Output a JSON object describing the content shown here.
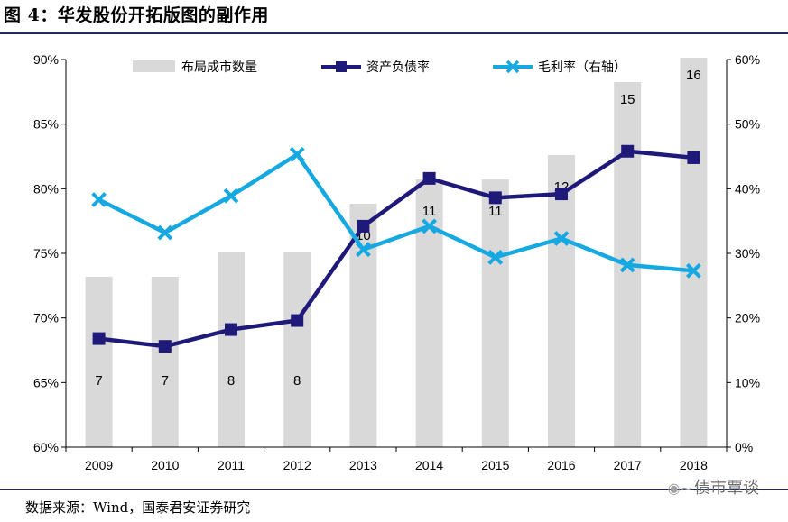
{
  "header": {
    "title": "图 4：华发股份开拓版图的副作用"
  },
  "footer": {
    "source": "数据来源：Wind，国泰君安证券研究",
    "watermark": "债市覃谈"
  },
  "icons": {
    "watermark_icon": "wechat-icon"
  },
  "colors": {
    "bars": "#d9d9d9",
    "debt_line": "#1f1a7a",
    "margin_line": "#16a9e1"
  },
  "chart_data": {
    "type": "bar",
    "categories": [
      "2009",
      "2010",
      "2011",
      "2012",
      "2013",
      "2014",
      "2015",
      "2016",
      "2017",
      "2018"
    ],
    "legend_position": "top",
    "grid": false,
    "series": [
      {
        "name": "布局成市数量",
        "kind": "bar",
        "axis": "none",
        "values": [
          7,
          7,
          8,
          8,
          10,
          11,
          11,
          12,
          15,
          16
        ]
      },
      {
        "name": "资产负债率",
        "kind": "line",
        "marker": "square",
        "axis": "left",
        "values": [
          68.4,
          67.8,
          69.1,
          69.8,
          77.1,
          80.8,
          79.3,
          79.6,
          82.9,
          82.4
        ]
      },
      {
        "name": "毛利率（右轴）",
        "kind": "line",
        "marker": "x",
        "axis": "right",
        "values": [
          38.3,
          33.2,
          38.9,
          45.3,
          30.6,
          34.2,
          29.4,
          32.3,
          28.2,
          27.3
        ]
      }
    ],
    "y_left": {
      "min": 60,
      "max": 90,
      "step": 5,
      "ticks": [
        "60%",
        "65%",
        "70%",
        "75%",
        "80%",
        "85%",
        "90%"
      ]
    },
    "y_right": {
      "min": 0,
      "max": 60,
      "step": 10,
      "ticks": [
        "0%",
        "10%",
        "20%",
        "30%",
        "40%",
        "50%",
        "60%"
      ]
    }
  }
}
